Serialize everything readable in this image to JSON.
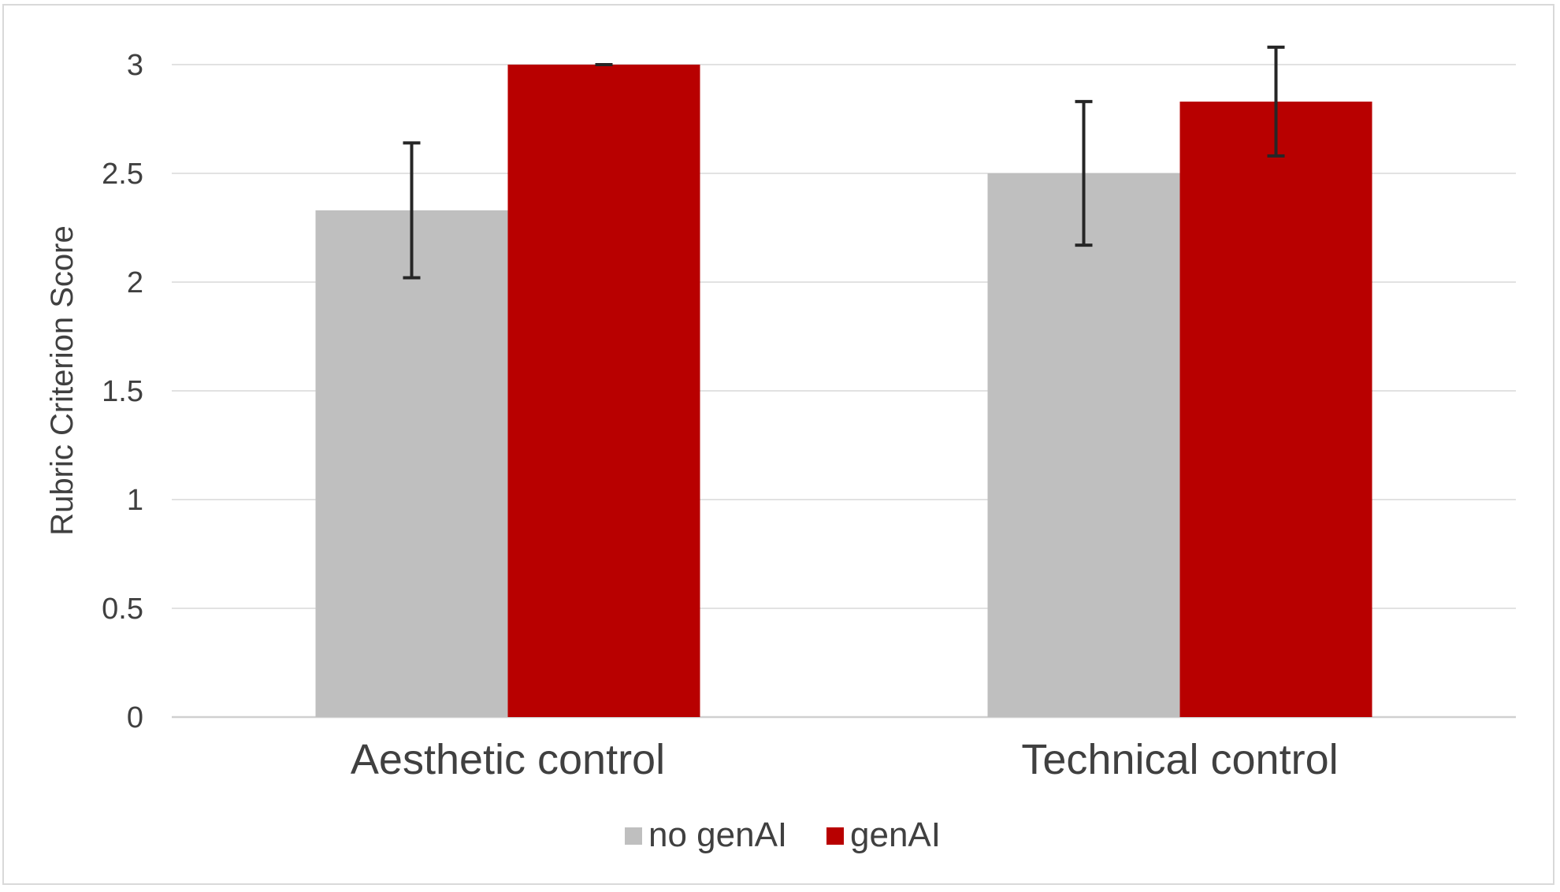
{
  "chart_data": {
    "type": "bar",
    "title": "",
    "xlabel": "",
    "ylabel": "Rubric Criterion Score",
    "ylim": [
      0,
      3
    ],
    "yticks": [
      "0",
      "0.5",
      "1",
      "1.5",
      "2",
      "2.5",
      "3"
    ],
    "grid": true,
    "legend_position": "bottom",
    "categories": [
      "Aesthetic control",
      "Technical control"
    ],
    "series": [
      {
        "name": "no genAI",
        "color": "#bfbfbf",
        "values": [
          2.33,
          2.5
        ],
        "error_low": [
          2.02,
          2.17
        ],
        "error_high": [
          2.64,
          2.83
        ]
      },
      {
        "name": "genAI",
        "color": "#b80000",
        "values": [
          3.0,
          2.83
        ],
        "error_low": [
          3.0,
          2.58
        ],
        "error_high": [
          3.0,
          3.08
        ]
      }
    ]
  }
}
